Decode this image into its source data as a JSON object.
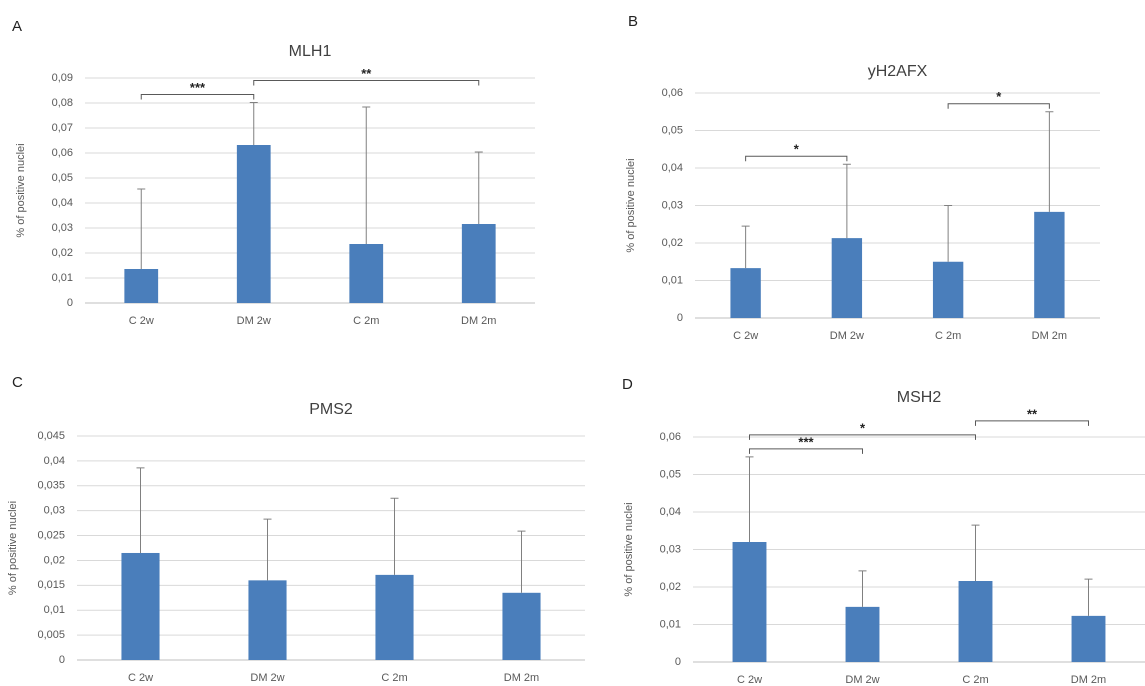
{
  "chart_data": [
    {
      "type": "bar",
      "panel": "A",
      "title": "MLH1",
      "ylabel": "% of positive nuclei",
      "categories": [
        "C 2w",
        "DM 2w",
        "C 2m",
        "DM 2m"
      ],
      "values": [
        0.0136,
        0.0632,
        0.0236,
        0.0316
      ],
      "errors": [
        0.032,
        0.017,
        0.0548,
        0.0288
      ],
      "color": "#4a7ebb",
      "ylim": [
        0,
        0.09
      ],
      "yticks": [
        0,
        {
          "value": 0.01,
          "label": "0,01"
        },
        {
          "value": 0.02,
          "label": "0,02"
        },
        {
          "value": 0.03,
          "label": "0,03"
        },
        {
          "value": 0.04,
          "label": "0,04"
        },
        {
          "value": 0.05,
          "label": "0,05"
        },
        {
          "value": 0.06,
          "label": "0,06"
        },
        {
          "value": 0.07,
          "label": "0,07"
        },
        {
          "value": 0.08,
          "label": "0,08"
        },
        {
          "value": 0.09,
          "label": "0,09"
        }
      ],
      "grid": true,
      "annotations": [
        {
          "from": 0,
          "to": 1,
          "label": "***"
        },
        {
          "from": 1,
          "to": 3,
          "label": "**"
        }
      ]
    },
    {
      "type": "bar",
      "panel": "B",
      "title": "yH2AFX",
      "ylabel": "% of positive nuclei",
      "categories": [
        "C 2w",
        "DM 2w",
        "C 2m",
        "DM 2m"
      ],
      "values": [
        0.0133,
        0.0213,
        0.015,
        0.0283
      ],
      "errors": [
        0.0112,
        0.0197,
        0.015,
        0.0267
      ],
      "color": "#4a7ebb",
      "ylim": [
        0,
        0.06
      ],
      "yticks": [
        0,
        {
          "value": 0.01,
          "label": "0,01"
        },
        {
          "value": 0.02,
          "label": "0,02"
        },
        {
          "value": 0.03,
          "label": "0,03"
        },
        {
          "value": 0.04,
          "label": "0,04"
        },
        {
          "value": 0.05,
          "label": "0,05"
        },
        {
          "value": 0.06,
          "label": "0,06"
        }
      ],
      "grid": true,
      "annotations": [
        {
          "from": 0,
          "to": 1,
          "label": "*"
        },
        {
          "from": 2,
          "to": 3,
          "label": "*"
        }
      ]
    },
    {
      "type": "bar",
      "panel": "C",
      "title": "PMS2",
      "ylabel": "% of positive nuclei",
      "categories": [
        "C 2w",
        "DM 2w",
        "C 2m",
        "DM 2m"
      ],
      "values": [
        0.0215,
        0.016,
        0.0171,
        0.0135
      ],
      "errors": [
        0.0171,
        0.0123,
        0.0154,
        0.0124
      ],
      "color": "#4a7ebb",
      "ylim": [
        0,
        0.045
      ],
      "yticks": [
        0,
        {
          "value": 0.005,
          "label": "0,005"
        },
        {
          "value": 0.01,
          "label": "0,01"
        },
        {
          "value": 0.015,
          "label": "0,015"
        },
        {
          "value": 0.02,
          "label": "0,02"
        },
        {
          "value": 0.025,
          "label": "0,025"
        },
        {
          "value": 0.03,
          "label": "0,03"
        },
        {
          "value": 0.035,
          "label": "0,035"
        },
        {
          "value": 0.04,
          "label": "0,04"
        },
        {
          "value": 0.045,
          "label": "0,045"
        }
      ],
      "grid": true,
      "annotations": []
    },
    {
      "type": "bar",
      "panel": "D",
      "title": "MSH2",
      "ylabel": "% of positive nuclei",
      "categories": [
        "C 2w",
        "DM 2w",
        "C 2m",
        "DM 2m"
      ],
      "values": [
        0.032,
        0.0147,
        0.0216,
        0.0123
      ],
      "errors": [
        0.0227,
        0.0096,
        0.0149,
        0.0098
      ],
      "color": "#4a7ebb",
      "ylim": [
        0,
        0.06
      ],
      "yticks": [
        0,
        {
          "value": 0.01,
          "label": "0,01"
        },
        {
          "value": 0.02,
          "label": "0,02"
        },
        {
          "value": 0.03,
          "label": "0,03"
        },
        {
          "value": 0.04,
          "label": "0,04"
        },
        {
          "value": 0.05,
          "label": "0,05"
        },
        {
          "value": 0.06,
          "label": "0,06"
        }
      ],
      "grid": true,
      "annotations": [
        {
          "from": 0,
          "to": 1,
          "label": "***"
        },
        {
          "from": 0,
          "to": 2,
          "label": "*"
        },
        {
          "from": 2,
          "to": 3,
          "label": "**"
        }
      ]
    }
  ]
}
